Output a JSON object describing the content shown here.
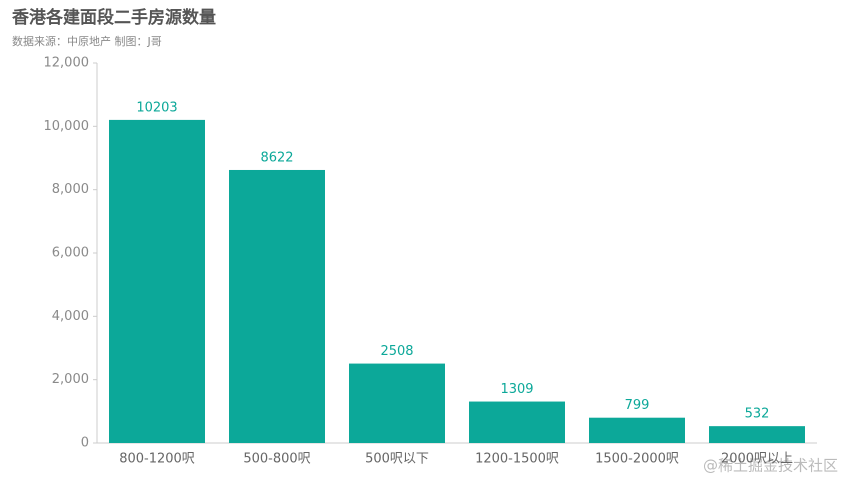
{
  "chart_data": {
    "type": "bar",
    "title": "香港各建面段二手房源数量",
    "subtitle": "数据来源：中原地产  制图：J哥",
    "watermark": "@稀土掘金技术社区",
    "categories": [
      "800-1200呎",
      "500-800呎",
      "500呎以下",
      "1200-1500呎",
      "1500-2000呎",
      "2000呎以上"
    ],
    "values": [
      10203,
      8622,
      2508,
      1309,
      799,
      532
    ],
    "color": "#0ca899",
    "ylim": [
      0,
      12000
    ],
    "yticks": [
      0,
      {
        "value": 2000,
        "label": "2,000"
      },
      {
        "value": 4000,
        "label": "4,000"
      },
      {
        "value": 6000,
        "label": "6,000"
      },
      {
        "value": 8000,
        "label": "8,000"
      },
      {
        "value": 10000,
        "label": "10,000"
      },
      {
        "value": 12000,
        "label": "12,000"
      }
    ],
    "grid": false
  }
}
